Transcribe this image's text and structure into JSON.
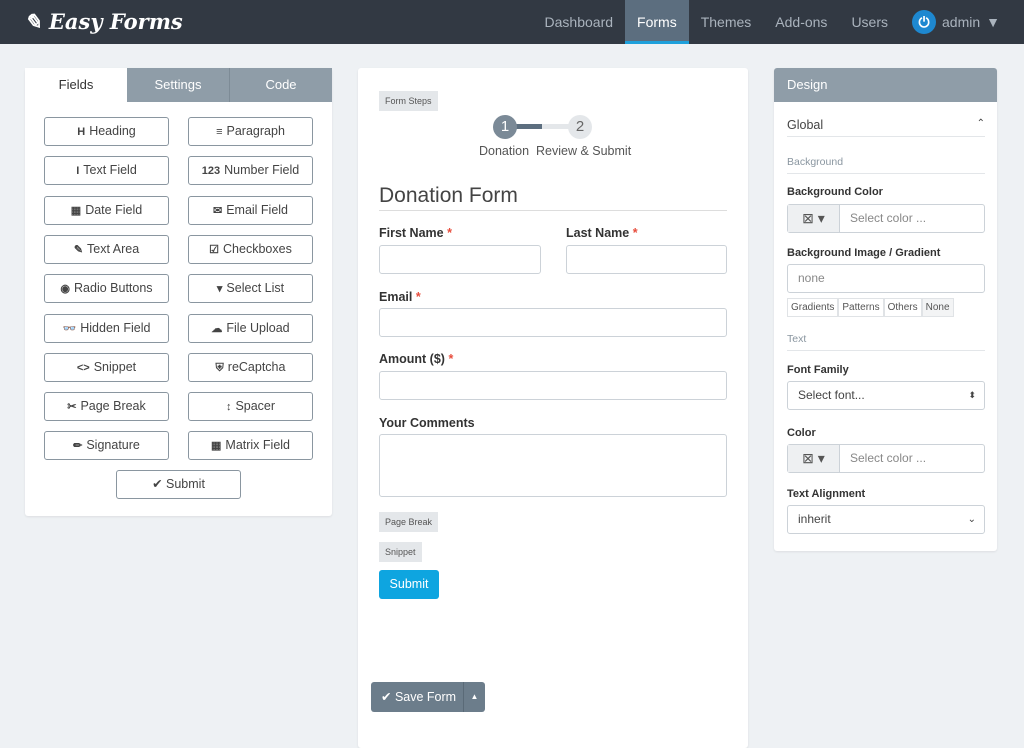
{
  "header": {
    "logo": "Easy Forms",
    "nav": [
      "Dashboard",
      "Forms",
      "Themes",
      "Add-ons",
      "Users"
    ],
    "active": "Forms",
    "user": "admin"
  },
  "left": {
    "tabs": [
      "Fields",
      "Settings",
      "Code"
    ],
    "fields": [
      {
        "icon": "H",
        "label": "Heading"
      },
      {
        "icon": "≡",
        "label": "Paragraph"
      },
      {
        "icon": "I",
        "label": "Text Field"
      },
      {
        "icon": "123",
        "label": "Number Field"
      },
      {
        "icon": "▦",
        "label": "Date Field"
      },
      {
        "icon": "✉",
        "label": "Email Field"
      },
      {
        "icon": "✎",
        "label": "Text Area"
      },
      {
        "icon": "☑",
        "label": "Checkboxes"
      },
      {
        "icon": "◉",
        "label": "Radio Buttons"
      },
      {
        "icon": "▾",
        "label": "Select List"
      },
      {
        "icon": "👓",
        "label": "Hidden Field"
      },
      {
        "icon": "☁",
        "label": "File Upload"
      },
      {
        "icon": "<>",
        "label": "Snippet"
      },
      {
        "icon": "⛨",
        "label": "reCaptcha"
      },
      {
        "icon": "✂",
        "label": "Page Break"
      },
      {
        "icon": "↕",
        "label": "Spacer"
      },
      {
        "icon": "✏",
        "label": "Signature"
      },
      {
        "icon": "▦",
        "label": "Matrix Field"
      }
    ],
    "submit": "✔ Submit"
  },
  "form": {
    "steps_badge": "Form Steps",
    "steps": [
      "Donation",
      "Review & Submit"
    ],
    "title": "Donation Form",
    "first_name": "First Name",
    "last_name": "Last Name",
    "email": "Email",
    "amount": "Amount ($)",
    "comments": "Your Comments",
    "required": "*",
    "page_break": "Page Break",
    "snippet": "Snippet",
    "submit": "Submit",
    "save": "Save Form"
  },
  "design": {
    "title": "Design",
    "global": "Global",
    "background": "Background",
    "bg_color": "Background Color",
    "select_color": "Select color ...",
    "bg_image": "Background Image / Gradient",
    "bg_image_value": "none",
    "bg_tabs": [
      "Gradients",
      "Patterns",
      "Others",
      "None"
    ],
    "text": "Text",
    "font_family": "Font Family",
    "font_value": "Select font...",
    "color": "Color",
    "align": "Text Alignment",
    "align_value": "inherit"
  },
  "colors": {
    "header": "#323943",
    "accent": "#1ea0db",
    "panel_header": "#8f9da8"
  }
}
